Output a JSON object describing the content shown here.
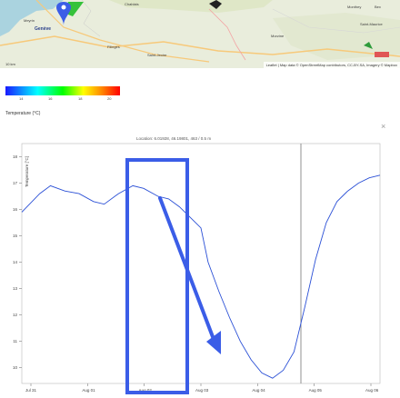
{
  "map": {
    "places": [
      {
        "name": "Chablais",
        "big": false
      },
      {
        "name": "Monthey",
        "big": false
      },
      {
        "name": "Bex",
        "big": false
      },
      {
        "name": "Meyrin",
        "big": false
      },
      {
        "name": "Genève",
        "big": true
      },
      {
        "name": "Saint-Maurice",
        "big": false
      },
      {
        "name": "Morzine",
        "big": false
      },
      {
        "name": "Filinges",
        "big": false
      },
      {
        "name": "Saint-Jeoire",
        "big": false
      }
    ],
    "scale_label": "10 km",
    "attribution": "Leaflet | Map data © OpenStreetMap contributors, CC-BY-SA, Imagery © Mapbox",
    "colors": {
      "land": "#e9eddc",
      "water": "#aad3df",
      "road": "#f7c97a",
      "blue": "#3b5de7"
    }
  },
  "legend": {
    "ticks": [
      "14",
      "16",
      "18",
      "20"
    ],
    "title": "Temperature (°C)"
  },
  "close_icon": "close-icon",
  "chart_data": {
    "type": "line",
    "title": "Location: 6.01928, 46.19801, 463 / 0.5 m",
    "ylabel": "Temperature [°C]",
    "ylim": [
      9.4,
      18.5
    ],
    "yticks": [
      10,
      11,
      12,
      13,
      14,
      15,
      16,
      17,
      18
    ],
    "xticks": [
      "Jul 31",
      "Aug 01",
      "Aug 02",
      "Aug 03",
      "Aug 04",
      "Aug 05",
      "Aug 06"
    ],
    "series": [
      {
        "values": [
          [
            0.0,
            15.9
          ],
          [
            0.05,
            16.6
          ],
          [
            0.08,
            16.9
          ],
          [
            0.12,
            16.7
          ],
          [
            0.16,
            16.6
          ],
          [
            0.2,
            16.3
          ],
          [
            0.23,
            16.2
          ],
          [
            0.27,
            16.6
          ],
          [
            0.31,
            16.9
          ],
          [
            0.34,
            16.8
          ],
          [
            0.38,
            16.5
          ],
          [
            0.41,
            16.4
          ],
          [
            0.44,
            16.1
          ],
          [
            0.47,
            15.7
          ],
          [
            0.5,
            15.3
          ],
          [
            0.52,
            14.0
          ],
          [
            0.55,
            12.9
          ],
          [
            0.58,
            11.9
          ],
          [
            0.61,
            11.0
          ],
          [
            0.64,
            10.3
          ],
          [
            0.67,
            9.8
          ],
          [
            0.7,
            9.6
          ],
          [
            0.73,
            9.9
          ],
          [
            0.76,
            10.6
          ],
          [
            0.79,
            12.3
          ],
          [
            0.82,
            14.1
          ],
          [
            0.85,
            15.5
          ],
          [
            0.88,
            16.3
          ],
          [
            0.91,
            16.7
          ],
          [
            0.94,
            17.0
          ],
          [
            0.97,
            17.2
          ],
          [
            1.0,
            17.3
          ]
        ]
      }
    ]
  }
}
